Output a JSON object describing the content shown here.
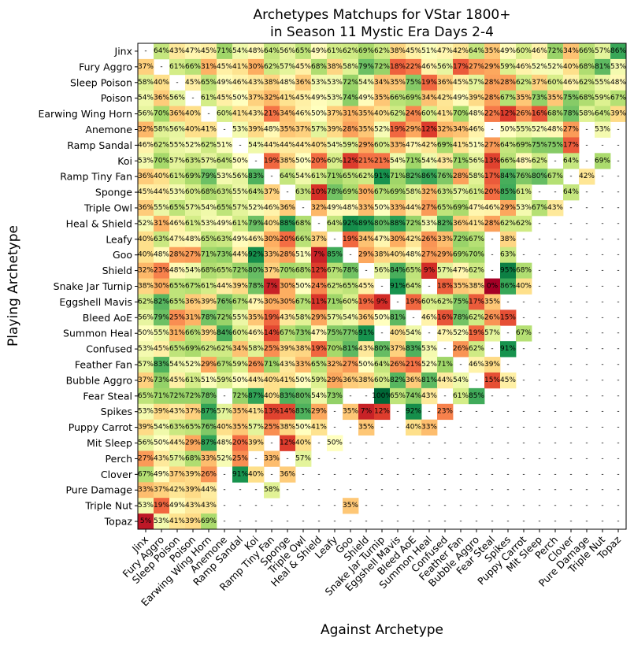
{
  "chart_data": {
    "type": "heatmap",
    "title_lines": [
      "Archetypes Matchups for VStar 1800+",
      "in Season 11 Mystic Era Days 2-4"
    ],
    "xlabel": "Against Archetype",
    "ylabel": "Playing Archetype",
    "rows": [
      "Jinx",
      "Fury Aggro",
      "Sleep Poison",
      "Poison",
      "Earwing Wing Horn",
      "Anemone",
      "Ramp Sandal",
      "Koi",
      "Ramp Tiny Fan",
      "Sponge",
      "Triple Owl",
      "Heal & Shield",
      "Leafy",
      "Goo",
      "Shield",
      "Snake Jar Turnip",
      "Eggshell Mavis",
      "Bleed AoE",
      "Summon Heal",
      "Confused",
      "Feather Fan",
      "Bubble Aggro",
      "Fear Steal",
      "Spikes",
      "Puppy Carrot",
      "Mit Sleep",
      "Perch",
      "Clover",
      "Pure Damage",
      "Triple Nut",
      "Topaz"
    ],
    "columns": [
      "Jinx",
      "Fury Aggro",
      "Sleep Poison",
      "Poison",
      "Earwing Wing Horn",
      "Anemone",
      "Ramp Sandal",
      "Koi",
      "Ramp Tiny Fan",
      "Sponge",
      "Triple Owl",
      "Heal & Shield",
      "Leafy",
      "Goo",
      "Shield",
      "Snake Jar Turnip",
      "Eggshell Mavis",
      "Bleed AoE",
      "Summon Heal",
      "Confused",
      "Feather Fan",
      "Bubble Aggro",
      "Fear Steal",
      "Spikes",
      "Puppy Carrot",
      "Mit Sleep",
      "Perch",
      "Clover",
      "Pure Damage",
      "Triple Nut",
      "Topaz"
    ],
    "empty_label": "-",
    "value_suffix": "%",
    "values": [
      [
        "-",
        64,
        43,
        47,
        45,
        71,
        54,
        48,
        64,
        56,
        65,
        49,
        61,
        62,
        69,
        62,
        38,
        45,
        51,
        47,
        42,
        64,
        35,
        49,
        60,
        46,
        72,
        34,
        66,
        57,
        86
      ],
      [
        37,
        "-",
        61,
        66,
        31,
        45,
        41,
        30,
        62,
        57,
        45,
        68,
        38,
        58,
        79,
        72,
        18,
        22,
        46,
        56,
        17,
        27,
        29,
        59,
        46,
        52,
        52,
        40,
        68,
        81,
        53
      ],
      [
        58,
        40,
        "-",
        45,
        65,
        49,
        46,
        43,
        38,
        48,
        36,
        53,
        53,
        72,
        54,
        34,
        35,
        75,
        19,
        36,
        45,
        57,
        28,
        28,
        62,
        37,
        60,
        46,
        62,
        55,
        48
      ],
      [
        54,
        36,
        56,
        "-",
        61,
        45,
        50,
        37,
        32,
        41,
        45,
        49,
        53,
        74,
        49,
        35,
        66,
        69,
        34,
        42,
        49,
        39,
        28,
        67,
        35,
        73,
        35,
        75,
        68,
        59,
        67
      ],
      [
        56,
        70,
        36,
        40,
        "-",
        60,
        41,
        43,
        21,
        34,
        46,
        50,
        37,
        31,
        35,
        40,
        62,
        24,
        60,
        41,
        70,
        48,
        22,
        12,
        26,
        16,
        68,
        78,
        58,
        64,
        39
      ],
      [
        32,
        58,
        56,
        40,
        41,
        "-",
        53,
        39,
        48,
        35,
        37,
        57,
        39,
        28,
        35,
        52,
        19,
        29,
        12,
        32,
        34,
        46,
        "-",
        50,
        55,
        52,
        48,
        27,
        "-",
        53,
        "-"
      ],
      [
        46,
        62,
        55,
        52,
        62,
        51,
        "-",
        54,
        44,
        44,
        44,
        40,
        54,
        59,
        29,
        60,
        33,
        47,
        42,
        69,
        41,
        51,
        27,
        64,
        69,
        75,
        75,
        17,
        "-",
        "-",
        "-"
      ],
      [
        53,
        70,
        57,
        63,
        57,
        64,
        50,
        "-",
        19,
        38,
        50,
        20,
        60,
        12,
        21,
        21,
        54,
        71,
        54,
        43,
        71,
        56,
        13,
        66,
        48,
        62,
        "-",
        64,
        "-",
        69,
        "-"
      ],
      [
        36,
        40,
        61,
        69,
        79,
        53,
        56,
        83,
        "-",
        64,
        54,
        61,
        71,
        65,
        62,
        91,
        71,
        82,
        86,
        76,
        28,
        58,
        17,
        84,
        76,
        80,
        67,
        "-",
        42,
        "-",
        "-"
      ],
      [
        45,
        44,
        53,
        60,
        68,
        63,
        55,
        64,
        37,
        "-",
        63,
        10,
        78,
        69,
        30,
        67,
        69,
        58,
        32,
        63,
        57,
        61,
        20,
        85,
        61,
        "-",
        "-",
        64,
        "-",
        "-",
        "-"
      ],
      [
        36,
        55,
        65,
        57,
        54,
        65,
        57,
        52,
        46,
        36,
        "-",
        32,
        49,
        48,
        33,
        50,
        33,
        44,
        27,
        65,
        69,
        47,
        46,
        29,
        53,
        67,
        43,
        "-",
        "-",
        "-",
        "-"
      ],
      [
        52,
        31,
        46,
        61,
        53,
        49,
        61,
        79,
        40,
        88,
        68,
        "-",
        64,
        92,
        89,
        80,
        88,
        72,
        53,
        82,
        36,
        41,
        28,
        62,
        62,
        "-",
        "-",
        "-",
        "-",
        "-",
        "-"
      ],
      [
        40,
        63,
        47,
        48,
        65,
        63,
        49,
        46,
        30,
        20,
        66,
        37,
        "-",
        19,
        34,
        47,
        30,
        42,
        26,
        33,
        72,
        67,
        "-",
        38,
        "-",
        "-",
        "-",
        "-",
        "-",
        "-",
        "-"
      ],
      [
        40,
        48,
        28,
        27,
        71,
        73,
        44,
        92,
        33,
        28,
        51,
        7,
        85,
        "-",
        29,
        38,
        40,
        48,
        27,
        29,
        69,
        70,
        "-",
        63,
        "-",
        "-",
        "-",
        "-",
        "-",
        "-",
        "-"
      ],
      [
        32,
        23,
        48,
        54,
        68,
        65,
        72,
        80,
        37,
        70,
        68,
        12,
        67,
        78,
        "-",
        56,
        84,
        65,
        9,
        57,
        47,
        62,
        "-",
        95,
        68,
        "-",
        "-",
        "-",
        "-",
        "-",
        "-"
      ],
      [
        38,
        30,
        65,
        67,
        61,
        44,
        39,
        78,
        7,
        30,
        50,
        24,
        62,
        65,
        45,
        "-",
        91,
        64,
        "-",
        18,
        35,
        38,
        0,
        86,
        40,
        "-",
        "-",
        "-",
        "-",
        "-",
        "-"
      ],
      [
        62,
        82,
        65,
        36,
        39,
        76,
        67,
        47,
        30,
        30,
        67,
        11,
        71,
        60,
        19,
        9,
        "-",
        19,
        60,
        62,
        75,
        17,
        35,
        "-",
        "-",
        "-",
        "-",
        "-",
        "-",
        "-",
        "-"
      ],
      [
        56,
        79,
        25,
        31,
        78,
        72,
        55,
        35,
        19,
        43,
        58,
        29,
        57,
        54,
        36,
        50,
        81,
        "-",
        46,
        16,
        78,
        62,
        26,
        15,
        "-",
        "-",
        "-",
        "-",
        "-",
        "-",
        "-"
      ],
      [
        50,
        55,
        31,
        66,
        39,
        84,
        60,
        46,
        14,
        67,
        73,
        47,
        75,
        77,
        91,
        "-",
        40,
        54,
        "-",
        47,
        52,
        19,
        57,
        "-",
        67,
        "-",
        "-",
        "-",
        "-",
        "-",
        "-"
      ],
      [
        53,
        45,
        65,
        69,
        62,
        62,
        34,
        58,
        25,
        39,
        38,
        19,
        70,
        81,
        43,
        80,
        37,
        83,
        53,
        "-",
        26,
        62,
        "-",
        91,
        "-",
        "-",
        "-",
        "-",
        "-",
        "-",
        "-"
      ],
      [
        57,
        83,
        54,
        52,
        29,
        67,
        59,
        26,
        71,
        43,
        33,
        65,
        32,
        27,
        50,
        64,
        26,
        21,
        52,
        71,
        "-",
        46,
        39,
        "-",
        "-",
        "-",
        "-",
        "-",
        "-",
        "-",
        "-"
      ],
      [
        37,
        73,
        45,
        61,
        51,
        59,
        50,
        44,
        40,
        41,
        50,
        59,
        29,
        36,
        38,
        60,
        82,
        36,
        81,
        44,
        54,
        "-",
        15,
        45,
        "-",
        "-",
        "-",
        "-",
        "-",
        "-",
        "-"
      ],
      [
        65,
        71,
        72,
        72,
        78,
        "-",
        72,
        87,
        40,
        83,
        80,
        54,
        73,
        "-",
        "-",
        100,
        65,
        74,
        43,
        "-",
        61,
        85,
        "-",
        "-",
        "-",
        "-",
        "-",
        "-",
        "-",
        "-",
        "-"
      ],
      [
        53,
        39,
        43,
        37,
        87,
        57,
        35,
        41,
        13,
        14,
        83,
        29,
        "-",
        35,
        7,
        12,
        "-",
        92,
        "-",
        23,
        "-",
        "-",
        "-",
        "-",
        "-",
        "-",
        "-",
        "-",
        "-",
        "-",
        "-"
      ],
      [
        39,
        54,
        63,
        65,
        76,
        40,
        35,
        57,
        25,
        38,
        50,
        41,
        "-",
        "-",
        35,
        "-",
        "-",
        40,
        33,
        "-",
        "-",
        "-",
        "-",
        "-",
        "-",
        "-",
        "-",
        "-",
        "-",
        "-",
        "-"
      ],
      [
        56,
        50,
        44,
        29,
        87,
        48,
        20,
        39,
        "-",
        12,
        40,
        "-",
        50,
        "-",
        "-",
        "-",
        "-",
        "-",
        "-",
        "-",
        "-",
        "-",
        "-",
        "-",
        "-",
        "-",
        "-",
        "-",
        "-",
        "-",
        "-"
      ],
      [
        27,
        43,
        57,
        68,
        33,
        52,
        25,
        "-",
        33,
        "-",
        57,
        "-",
        "-",
        "-",
        "-",
        "-",
        "-",
        "-",
        "-",
        "-",
        "-",
        "-",
        "-",
        "-",
        "-",
        "-",
        "-",
        "-",
        "-",
        "-",
        "-"
      ],
      [
        67,
        49,
        37,
        39,
        26,
        "-",
        91,
        40,
        "-",
        36,
        "-",
        "-",
        "-",
        "-",
        "-",
        "-",
        "-",
        "-",
        "-",
        "-",
        "-",
        "-",
        "-",
        "-",
        "-",
        "-",
        "-",
        "-",
        "-",
        "-",
        "-"
      ],
      [
        33,
        37,
        42,
        39,
        44,
        "-",
        "-",
        "-",
        58,
        "-",
        "-",
        "-",
        "-",
        "-",
        "-",
        "-",
        "-",
        "-",
        "-",
        "-",
        "-",
        "-",
        "-",
        "-",
        "-",
        "-",
        "-",
        "-",
        "-",
        "-",
        "-"
      ],
      [
        53,
        19,
        49,
        43,
        43,
        "-",
        "-",
        "-",
        "-",
        "-",
        "-",
        "-",
        "-",
        35,
        "-",
        "-",
        "-",
        "-",
        "-",
        "-",
        "-",
        "-",
        "-",
        "-",
        "-",
        "-",
        "-",
        "-",
        "-",
        "-",
        "-"
      ],
      [
        5,
        53,
        41,
        39,
        69,
        "-",
        "-",
        "-",
        "-",
        "-",
        "-",
        "-",
        "-",
        "-",
        "-",
        "-",
        "-",
        "-",
        "-",
        "-",
        "-",
        "-",
        "-",
        "-",
        "-",
        "-",
        "-",
        "-",
        "-",
        "-",
        "-"
      ]
    ]
  }
}
